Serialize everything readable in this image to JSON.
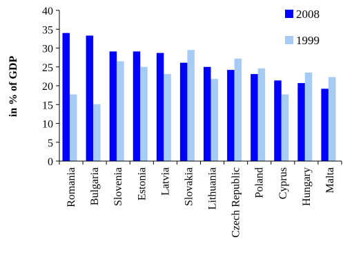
{
  "chart_data": {
    "type": "bar",
    "title": "",
    "xlabel": "",
    "ylabel": "in % of GDP",
    "ylim": [
      0,
      40
    ],
    "yticks": [
      0,
      5,
      10,
      15,
      20,
      25,
      30,
      35,
      40
    ],
    "grid": false,
    "legend_position": "top-right",
    "categories": [
      "Romania",
      "Bulgaria",
      "Slovenia",
      "Estonia",
      "Latvia",
      "Slovakia",
      "Lithuania",
      "Czech Republic",
      "Poland",
      "Cyprus",
      "Hungary",
      "Malta"
    ],
    "series": [
      {
        "name": "2008",
        "color": "#0000ff",
        "values": [
          34.0,
          33.3,
          29.1,
          29.1,
          28.7,
          26.1,
          25.0,
          24.2,
          23.1,
          21.4,
          20.7,
          19.2
        ]
      },
      {
        "name": "1999",
        "color": "#a6ccf5",
        "values": [
          17.7,
          15.1,
          26.5,
          25.0,
          23.1,
          29.5,
          21.8,
          27.2,
          24.6,
          17.7,
          23.5,
          22.3
        ]
      }
    ]
  }
}
